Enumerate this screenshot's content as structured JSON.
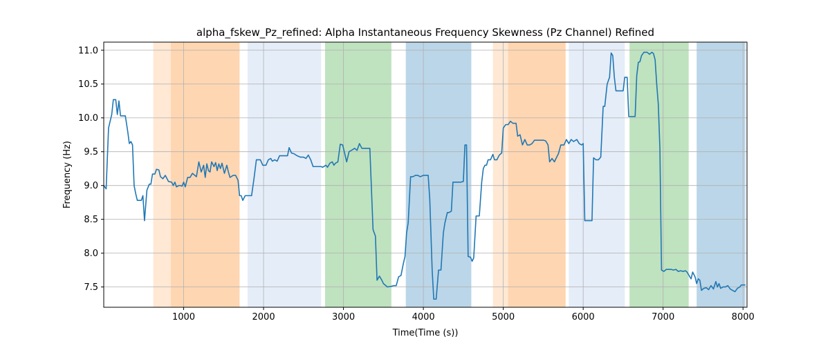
{
  "chart_data": {
    "type": "line",
    "title": "alpha_fskew_Pz_refined: Alpha Instantaneous Frequency Skewness (Pz Channel) Refined",
    "xlabel": "Time(Time (s))",
    "ylabel": "Frequency (Hz)",
    "xlim": [
      0,
      8050
    ],
    "ylim": [
      7.2,
      11.12
    ],
    "xticks": [
      1000,
      2000,
      3000,
      4000,
      5000,
      6000,
      7000,
      8000
    ],
    "yticks": [
      7.5,
      8.0,
      8.5,
      9.0,
      9.5,
      10.0,
      10.5,
      11.0
    ],
    "grid": true,
    "line_color": "#1f77b4",
    "bands": [
      {
        "x0": 620,
        "x1": 840,
        "color": "#ff7f0e",
        "opacity": 0.18
      },
      {
        "x0": 840,
        "x1": 1700,
        "color": "#ff7f0e",
        "opacity": 0.32
      },
      {
        "x0": 1800,
        "x1": 2720,
        "color": "#aec7e8",
        "opacity": 0.32
      },
      {
        "x0": 2770,
        "x1": 3600,
        "color": "#2ca02c",
        "opacity": 0.3
      },
      {
        "x0": 3780,
        "x1": 4600,
        "color": "#1f77b4",
        "opacity": 0.3
      },
      {
        "x0": 4870,
        "x1": 5060,
        "color": "#ff7f0e",
        "opacity": 0.18
      },
      {
        "x0": 5060,
        "x1": 5780,
        "color": "#ff7f0e",
        "opacity": 0.32
      },
      {
        "x0": 5820,
        "x1": 6520,
        "color": "#aec7e8",
        "opacity": 0.32
      },
      {
        "x0": 6580,
        "x1": 7320,
        "color": "#2ca02c",
        "opacity": 0.3
      },
      {
        "x0": 7420,
        "x1": 8030,
        "color": "#1f77b4",
        "opacity": 0.3
      }
    ],
    "series": [
      {
        "values": [
          [
            0,
            9.0
          ],
          [
            30,
            8.95
          ],
          [
            60,
            9.85
          ],
          [
            100,
            10.05
          ],
          [
            120,
            10.27
          ],
          [
            150,
            10.27
          ],
          [
            170,
            10.05
          ],
          [
            190,
            10.25
          ],
          [
            210,
            10.03
          ],
          [
            270,
            10.03
          ],
          [
            300,
            9.8
          ],
          [
            320,
            9.62
          ],
          [
            340,
            9.65
          ],
          [
            360,
            9.6
          ],
          [
            380,
            9.0
          ],
          [
            400,
            8.88
          ],
          [
            420,
            8.78
          ],
          [
            470,
            8.78
          ],
          [
            490,
            8.85
          ],
          [
            510,
            8.48
          ],
          [
            540,
            8.93
          ],
          [
            570,
            9.02
          ],
          [
            590,
            9.02
          ],
          [
            610,
            9.17
          ],
          [
            640,
            9.17
          ],
          [
            660,
            9.24
          ],
          [
            690,
            9.23
          ],
          [
            710,
            9.13
          ],
          [
            740,
            9.1
          ],
          [
            770,
            9.15
          ],
          [
            810,
            9.06
          ],
          [
            850,
            9.05
          ],
          [
            870,
            9.0
          ],
          [
            890,
            9.05
          ],
          [
            910,
            8.98
          ],
          [
            940,
            9.0
          ],
          [
            960,
            9.0
          ],
          [
            980,
            8.99
          ],
          [
            1000,
            9.05
          ],
          [
            1020,
            8.98
          ],
          [
            1050,
            9.12
          ],
          [
            1080,
            9.12
          ],
          [
            1110,
            9.18
          ],
          [
            1140,
            9.15
          ],
          [
            1160,
            9.13
          ],
          [
            1190,
            9.35
          ],
          [
            1220,
            9.2
          ],
          [
            1250,
            9.3
          ],
          [
            1270,
            9.12
          ],
          [
            1290,
            9.32
          ],
          [
            1310,
            9.22
          ],
          [
            1330,
            9.2
          ],
          [
            1350,
            9.35
          ],
          [
            1380,
            9.28
          ],
          [
            1400,
            9.34
          ],
          [
            1420,
            9.22
          ],
          [
            1440,
            9.32
          ],
          [
            1460,
            9.25
          ],
          [
            1480,
            9.33
          ],
          [
            1510,
            9.18
          ],
          [
            1540,
            9.3
          ],
          [
            1560,
            9.2
          ],
          [
            1580,
            9.12
          ],
          [
            1620,
            9.15
          ],
          [
            1650,
            9.15
          ],
          [
            1680,
            9.08
          ],
          [
            1700,
            8.85
          ],
          [
            1720,
            8.85
          ],
          [
            1740,
            8.78
          ],
          [
            1770,
            8.85
          ],
          [
            1850,
            8.85
          ],
          [
            1880,
            9.1
          ],
          [
            1910,
            9.38
          ],
          [
            1960,
            9.38
          ],
          [
            1990,
            9.3
          ],
          [
            2030,
            9.3
          ],
          [
            2060,
            9.38
          ],
          [
            2090,
            9.4
          ],
          [
            2110,
            9.36
          ],
          [
            2140,
            9.38
          ],
          [
            2170,
            9.36
          ],
          [
            2200,
            9.44
          ],
          [
            2300,
            9.44
          ],
          [
            2320,
            9.56
          ],
          [
            2350,
            9.48
          ],
          [
            2380,
            9.47
          ],
          [
            2420,
            9.44
          ],
          [
            2460,
            9.42
          ],
          [
            2500,
            9.42
          ],
          [
            2530,
            9.4
          ],
          [
            2560,
            9.45
          ],
          [
            2590,
            9.38
          ],
          [
            2620,
            9.28
          ],
          [
            2720,
            9.28
          ],
          [
            2740,
            9.27
          ],
          [
            2780,
            9.3
          ],
          [
            2800,
            9.27
          ],
          [
            2830,
            9.33
          ],
          [
            2860,
            9.35
          ],
          [
            2880,
            9.3
          ],
          [
            2900,
            9.33
          ],
          [
            2930,
            9.35
          ],
          [
            2960,
            9.61
          ],
          [
            2990,
            9.6
          ],
          [
            3010,
            9.5
          ],
          [
            3040,
            9.35
          ],
          [
            3070,
            9.5
          ],
          [
            3100,
            9.52
          ],
          [
            3140,
            9.55
          ],
          [
            3170,
            9.52
          ],
          [
            3200,
            9.62
          ],
          [
            3230,
            9.55
          ],
          [
            3330,
            9.55
          ],
          [
            3370,
            8.35
          ],
          [
            3400,
            8.25
          ],
          [
            3420,
            7.6
          ],
          [
            3450,
            7.66
          ],
          [
            3480,
            7.6
          ],
          [
            3500,
            7.55
          ],
          [
            3530,
            7.52
          ],
          [
            3550,
            7.5
          ],
          [
            3600,
            7.51
          ],
          [
            3630,
            7.52
          ],
          [
            3660,
            7.52
          ],
          [
            3690,
            7.65
          ],
          [
            3720,
            7.67
          ],
          [
            3750,
            7.85
          ],
          [
            3770,
            7.95
          ],
          [
            3790,
            8.3
          ],
          [
            3810,
            8.45
          ],
          [
            3840,
            9.13
          ],
          [
            3870,
            9.13
          ],
          [
            3900,
            9.15
          ],
          [
            3930,
            9.15
          ],
          [
            3960,
            9.13
          ],
          [
            4000,
            9.15
          ],
          [
            4060,
            9.15
          ],
          [
            4080,
            8.8
          ],
          [
            4110,
            7.75
          ],
          [
            4130,
            7.32
          ],
          [
            4160,
            7.32
          ],
          [
            4190,
            7.75
          ],
          [
            4220,
            7.75
          ],
          [
            4250,
            8.3
          ],
          [
            4270,
            8.45
          ],
          [
            4300,
            8.6
          ],
          [
            4320,
            8.6
          ],
          [
            4350,
            8.62
          ],
          [
            4370,
            9.05
          ],
          [
            4410,
            9.05
          ],
          [
            4440,
            9.05
          ],
          [
            4470,
            9.05
          ],
          [
            4500,
            9.06
          ],
          [
            4520,
            9.6
          ],
          [
            4540,
            9.6
          ],
          [
            4560,
            7.95
          ],
          [
            4590,
            7.94
          ],
          [
            4610,
            7.88
          ],
          [
            4630,
            7.93
          ],
          [
            4660,
            8.55
          ],
          [
            4700,
            8.55
          ],
          [
            4730,
            9.05
          ],
          [
            4750,
            9.25
          ],
          [
            4770,
            9.3
          ],
          [
            4790,
            9.3
          ],
          [
            4810,
            9.38
          ],
          [
            4840,
            9.38
          ],
          [
            4870,
            9.46
          ],
          [
            4890,
            9.38
          ],
          [
            4920,
            9.38
          ],
          [
            4950,
            9.45
          ],
          [
            4980,
            9.48
          ],
          [
            5000,
            9.85
          ],
          [
            5030,
            9.9
          ],
          [
            5060,
            9.9
          ],
          [
            5090,
            9.95
          ],
          [
            5120,
            9.92
          ],
          [
            5160,
            9.92
          ],
          [
            5180,
            9.73
          ],
          [
            5210,
            9.75
          ],
          [
            5240,
            9.6
          ],
          [
            5270,
            9.68
          ],
          [
            5300,
            9.6
          ],
          [
            5330,
            9.6
          ],
          [
            5360,
            9.62
          ],
          [
            5390,
            9.67
          ],
          [
            5420,
            9.67
          ],
          [
            5460,
            9.67
          ],
          [
            5500,
            9.67
          ],
          [
            5530,
            9.66
          ],
          [
            5560,
            9.6
          ],
          [
            5580,
            9.35
          ],
          [
            5610,
            9.4
          ],
          [
            5640,
            9.35
          ],
          [
            5660,
            9.4
          ],
          [
            5690,
            9.47
          ],
          [
            5720,
            9.6
          ],
          [
            5760,
            9.6
          ],
          [
            5790,
            9.68
          ],
          [
            5820,
            9.62
          ],
          [
            5850,
            9.68
          ],
          [
            5880,
            9.65
          ],
          [
            5920,
            9.68
          ],
          [
            5950,
            9.62
          ],
          [
            5980,
            9.6
          ],
          [
            6000,
            9.62
          ],
          [
            6020,
            8.48
          ],
          [
            6050,
            8.48
          ],
          [
            6080,
            8.48
          ],
          [
            6110,
            8.48
          ],
          [
            6130,
            9.41
          ],
          [
            6160,
            9.38
          ],
          [
            6190,
            9.38
          ],
          [
            6220,
            9.42
          ],
          [
            6250,
            10.17
          ],
          [
            6270,
            10.17
          ],
          [
            6300,
            10.5
          ],
          [
            6330,
            10.6
          ],
          [
            6350,
            10.96
          ],
          [
            6370,
            10.92
          ],
          [
            6390,
            10.6
          ],
          [
            6410,
            10.4
          ],
          [
            6500,
            10.4
          ],
          [
            6520,
            10.6
          ],
          [
            6550,
            10.6
          ],
          [
            6570,
            10.02
          ],
          [
            6600,
            10.02
          ],
          [
            6630,
            10.02
          ],
          [
            6650,
            10.02
          ],
          [
            6670,
            10.62
          ],
          [
            6690,
            10.82
          ],
          [
            6710,
            10.83
          ],
          [
            6730,
            10.92
          ],
          [
            6760,
            10.97
          ],
          [
            6800,
            10.97
          ],
          [
            6830,
            10.94
          ],
          [
            6860,
            10.97
          ],
          [
            6880,
            10.95
          ],
          [
            6900,
            10.86
          ],
          [
            6920,
            10.5
          ],
          [
            6940,
            10.2
          ],
          [
            6960,
            9.55
          ],
          [
            6980,
            7.75
          ],
          [
            7010,
            7.73
          ],
          [
            7040,
            7.76
          ],
          [
            7070,
            7.76
          ],
          [
            7100,
            7.76
          ],
          [
            7130,
            7.75
          ],
          [
            7160,
            7.76
          ],
          [
            7190,
            7.73
          ],
          [
            7220,
            7.74
          ],
          [
            7250,
            7.73
          ],
          [
            7280,
            7.74
          ],
          [
            7300,
            7.72
          ],
          [
            7320,
            7.68
          ],
          [
            7350,
            7.62
          ],
          [
            7370,
            7.72
          ],
          [
            7400,
            7.65
          ],
          [
            7420,
            7.55
          ],
          [
            7440,
            7.62
          ],
          [
            7460,
            7.6
          ],
          [
            7480,
            7.45
          ],
          [
            7510,
            7.48
          ],
          [
            7540,
            7.49
          ],
          [
            7570,
            7.46
          ],
          [
            7600,
            7.52
          ],
          [
            7630,
            7.47
          ],
          [
            7660,
            7.58
          ],
          [
            7680,
            7.5
          ],
          [
            7700,
            7.55
          ],
          [
            7720,
            7.48
          ],
          [
            7750,
            7.5
          ],
          [
            7780,
            7.5
          ],
          [
            7810,
            7.52
          ],
          [
            7840,
            7.47
          ],
          [
            7870,
            7.45
          ],
          [
            7900,
            7.43
          ],
          [
            7930,
            7.48
          ],
          [
            7960,
            7.5
          ],
          [
            7980,
            7.53
          ],
          [
            8000,
            7.53
          ],
          [
            8030,
            7.53
          ]
        ]
      }
    ]
  }
}
